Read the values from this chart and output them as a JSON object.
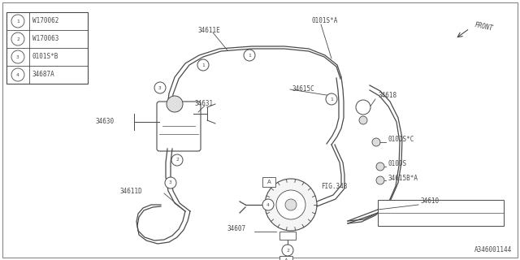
{
  "background_color": "#ffffff",
  "line_color": "#4a4a4a",
  "part_number": "A346001144",
  "legend": [
    {
      "num": "1",
      "code": "W170062"
    },
    {
      "num": "2",
      "code": "W170063"
    },
    {
      "num": "3",
      "code": "0101S*B"
    },
    {
      "num": "4",
      "code": "34687A"
    }
  ],
  "fig_w": 6.4,
  "fig_h": 3.2,
  "dpi": 100
}
